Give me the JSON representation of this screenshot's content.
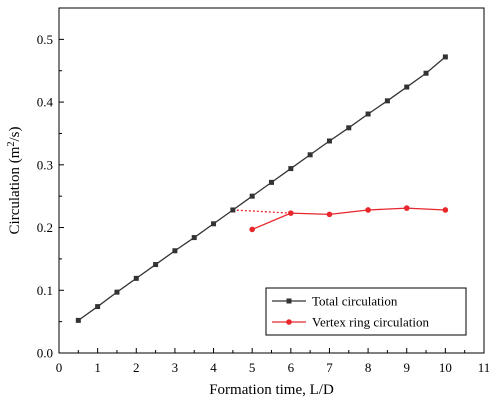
{
  "chart_data": {
    "type": "line",
    "xlabel": "Formation time, L/D",
    "ylabel_prefix": "Circulation (m",
    "ylabel_sup": "2",
    "ylabel_suffix": "/s)",
    "xlim": [
      0,
      11
    ],
    "ylim": [
      0.0,
      0.55
    ],
    "xticks": [
      0,
      1,
      2,
      3,
      4,
      5,
      6,
      7,
      8,
      9,
      10,
      11
    ],
    "xtick_labels": [
      "0",
      "1",
      "2",
      "3",
      "4",
      "5",
      "6",
      "7",
      "8",
      "9",
      "10",
      "11"
    ],
    "yticks": [
      0.0,
      0.1,
      0.2,
      0.3,
      0.4,
      0.5
    ],
    "ytick_labels": [
      "0.0",
      "0.1",
      "0.2",
      "0.3",
      "0.4",
      "0.5"
    ],
    "grid": false,
    "legend_position": "bottom-right",
    "series": [
      {
        "name": "Total circulation",
        "color": "#333333",
        "marker": "square",
        "x": [
          0.5,
          1.0,
          1.5,
          2.0,
          2.5,
          3.0,
          3.5,
          4.0,
          4.5,
          5.0,
          5.5,
          6.0,
          6.5,
          7.0,
          7.5,
          8.0,
          8.5,
          9.0,
          9.5,
          10.0
        ],
        "y": [
          0.052,
          0.074,
          0.097,
          0.119,
          0.141,
          0.163,
          0.184,
          0.206,
          0.228,
          0.25,
          0.272,
          0.294,
          0.316,
          0.338,
          0.359,
          0.381,
          0.402,
          0.424,
          0.446,
          0.472
        ]
      },
      {
        "name": "Vertex ring circulation",
        "color": "#e8262b",
        "marker": "circle",
        "x": [
          5,
          6,
          7,
          8,
          9,
          10
        ],
        "y": [
          0.197,
          0.223,
          0.221,
          0.228,
          0.231,
          0.228
        ]
      }
    ],
    "annotations": [
      {
        "type": "dotted-connector",
        "color": "#e8262b",
        "from": [
          4.5,
          0.228
        ],
        "to": [
          6,
          0.223
        ]
      }
    ]
  }
}
